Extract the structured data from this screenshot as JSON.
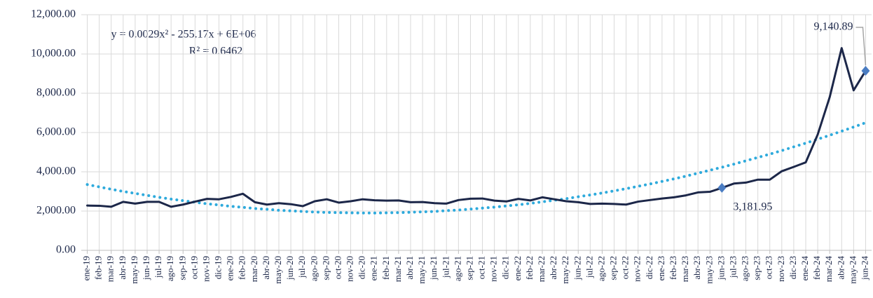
{
  "chart_data": {
    "type": "line",
    "categories": [
      "ene-19",
      "feb-19",
      "mar-19",
      "abr-19",
      "may-19",
      "jun-19",
      "jul-19",
      "ago-19",
      "sep-19",
      "oct-19",
      "nov-19",
      "dic-19",
      "ene-20",
      "feb-20",
      "mar-20",
      "abr-20",
      "may-20",
      "jun-20",
      "jul-20",
      "ago-20",
      "sep-20",
      "oct-20",
      "nov-20",
      "dic-20",
      "ene-21",
      "feb-21",
      "mar-21",
      "abr-21",
      "may-21",
      "jun-21",
      "jul-21",
      "ago-21",
      "sep-21",
      "oct-21",
      "nov-21",
      "dic-21",
      "ene-22",
      "feb-22",
      "mar-22",
      "abr-22",
      "may-22",
      "jun-22",
      "jul-22",
      "ago-22",
      "sep-22",
      "oct-22",
      "nov-22",
      "dic-22",
      "ene-23",
      "feb-23",
      "mar-23",
      "abr-23",
      "may-23",
      "jun-23",
      "jul-23",
      "ago-23",
      "sep-23",
      "oct-23",
      "nov-23",
      "dic-23",
      "ene-24",
      "feb-24",
      "mar-24",
      "abr-24",
      "may-24",
      "jun-24"
    ],
    "series": [
      {
        "color": "#1c2749",
        "style": "solid",
        "values": [
          2280,
          2270,
          2220,
          2470,
          2380,
          2470,
          2470,
          2220,
          2330,
          2480,
          2620,
          2600,
          2720,
          2880,
          2450,
          2330,
          2400,
          2350,
          2250,
          2500,
          2600,
          2430,
          2500,
          2600,
          2550,
          2530,
          2540,
          2450,
          2460,
          2400,
          2380,
          2560,
          2630,
          2640,
          2530,
          2490,
          2620,
          2540,
          2700,
          2600,
          2500,
          2450,
          2360,
          2380,
          2360,
          2330,
          2480,
          2560,
          2640,
          2700,
          2800,
          2950,
          2980,
          3181.95,
          3400,
          3450,
          3600,
          3600,
          4030,
          4250,
          4480,
          5900,
          7800,
          10300,
          8150,
          9140.89
        ],
        "value_labels": [
          null,
          null,
          null,
          null,
          null,
          null,
          null,
          null,
          null,
          null,
          null,
          null,
          null,
          null,
          null,
          null,
          null,
          null,
          null,
          null,
          null,
          null,
          null,
          null,
          null,
          null,
          null,
          null,
          null,
          null,
          null,
          null,
          null,
          null,
          null,
          null,
          null,
          null,
          null,
          null,
          null,
          null,
          null,
          null,
          null,
          null,
          null,
          null,
          null,
          null,
          null,
          null,
          null,
          "3,181.95",
          null,
          null,
          null,
          null,
          null,
          null,
          null,
          null,
          null,
          null,
          null,
          "9,140.89"
        ],
        "marker_color": "#4a7cc2"
      },
      {
        "color": "#2eaadc",
        "style": "dotted",
        "values": [
          3350,
          3230,
          3110,
          3000,
          2900,
          2800,
          2700,
          2610,
          2530,
          2450,
          2370,
          2310,
          2240,
          2190,
          2130,
          2090,
          2040,
          2010,
          1980,
          1950,
          1930,
          1920,
          1910,
          1900,
          1900,
          1910,
          1920,
          1940,
          1960,
          1980,
          2020,
          2050,
          2100,
          2150,
          2200,
          2260,
          2320,
          2390,
          2470,
          2550,
          2630,
          2730,
          2820,
          2920,
          3030,
          3140,
          3260,
          3380,
          3510,
          3640,
          3780,
          3930,
          4080,
          4230,
          4390,
          4560,
          4730,
          4900,
          5080,
          5270,
          5460,
          5660,
          5860,
          6070,
          6280,
          6500
        ]
      }
    ],
    "annotations": [
      "y = 0.0029x² - 255.17x + 6E+06",
      "R² = 0.6462"
    ],
    "ylim": [
      0,
      12000
    ],
    "yticks": [
      {
        "value": 0,
        "label": "0.00"
      },
      {
        "value": 2000,
        "label": "2,000.00"
      },
      {
        "value": 4000,
        "label": "4,000.00"
      },
      {
        "value": 6000,
        "label": "6,000.00"
      },
      {
        "value": 8000,
        "label": "8,000.00"
      },
      {
        "value": 10000,
        "label": "10,000.00"
      },
      {
        "value": 12000,
        "label": "12,000.00"
      }
    ],
    "grid": true
  }
}
